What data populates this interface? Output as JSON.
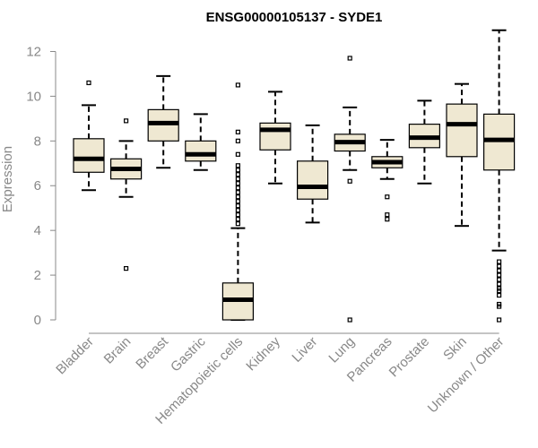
{
  "chart_data": {
    "type": "boxplot",
    "title": "ENSG00000105137 - SYDE1",
    "xlabel": "",
    "ylabel": "Expression",
    "ylim": [
      0,
      12.5
    ],
    "yticks": [
      0,
      2,
      4,
      6,
      8,
      10,
      12
    ],
    "box_color": "#efe8d2",
    "categories": [
      "Bladder",
      "Brain",
      "Breast",
      "Gastric",
      "Hematopoietic cells",
      "Kidney",
      "Liver",
      "Lung",
      "Pancreas",
      "Prostate",
      "Skin",
      "Unknown / Other"
    ],
    "boxes": [
      {
        "whisker_low": 5.8,
        "q1": 6.6,
        "median": 7.2,
        "q3": 8.1,
        "whisker_high": 9.6,
        "outliers": [
          10.6
        ]
      },
      {
        "whisker_low": 5.5,
        "q1": 6.3,
        "median": 6.75,
        "q3": 7.2,
        "whisker_high": 8.0,
        "outliers": [
          8.9,
          2.3
        ]
      },
      {
        "whisker_low": 6.8,
        "q1": 8.0,
        "median": 8.8,
        "q3": 9.4,
        "whisker_high": 10.9,
        "outliers": []
      },
      {
        "whisker_low": 6.7,
        "q1": 7.1,
        "median": 7.4,
        "q3": 8.0,
        "whisker_high": 9.2,
        "outliers": []
      },
      {
        "whisker_low": 0.0,
        "q1": 0.0,
        "median": 0.9,
        "q3": 1.65,
        "whisker_high": 4.1,
        "outliers": [
          10.5,
          8.4,
          8.0,
          7.4,
          6.9,
          6.7,
          6.5,
          6.3,
          6.1,
          5.9,
          5.7,
          5.5,
          5.3,
          5.1,
          4.9,
          4.7,
          4.5,
          4.3
        ]
      },
      {
        "whisker_low": 6.1,
        "q1": 7.6,
        "median": 8.5,
        "q3": 8.8,
        "whisker_high": 10.2,
        "outliers": []
      },
      {
        "whisker_low": 4.35,
        "q1": 5.4,
        "median": 5.95,
        "q3": 7.1,
        "whisker_high": 8.7,
        "outliers": []
      },
      {
        "whisker_low": 6.7,
        "q1": 7.55,
        "median": 7.95,
        "q3": 8.3,
        "whisker_high": 9.5,
        "outliers": [
          11.7,
          6.2,
          0.0
        ]
      },
      {
        "whisker_low": 6.3,
        "q1": 6.8,
        "median": 7.05,
        "q3": 7.3,
        "whisker_high": 8.05,
        "outliers": [
          5.5,
          4.7,
          4.5
        ]
      },
      {
        "whisker_low": 6.1,
        "q1": 7.7,
        "median": 8.15,
        "q3": 8.75,
        "whisker_high": 9.8,
        "outliers": []
      },
      {
        "whisker_low": 4.2,
        "q1": 7.3,
        "median": 8.75,
        "q3": 9.65,
        "whisker_high": 10.55,
        "outliers": []
      },
      {
        "whisker_low": 3.1,
        "q1": 6.7,
        "median": 8.05,
        "q3": 9.2,
        "whisker_high": 12.95,
        "outliers": [
          2.6,
          2.4,
          2.2,
          2.0,
          1.8,
          1.6,
          1.4,
          1.3,
          1.1,
          0.7,
          0.6,
          0.0
        ]
      }
    ]
  }
}
